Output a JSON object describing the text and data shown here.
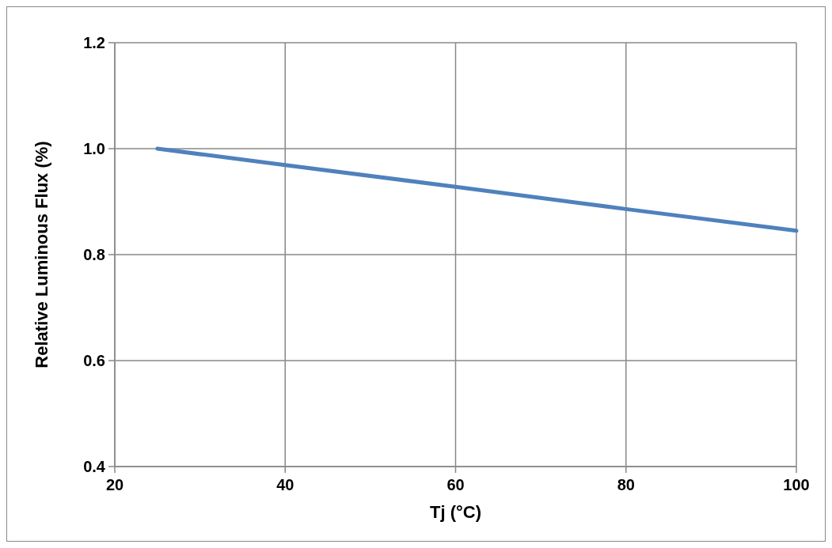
{
  "chart_data": {
    "type": "line",
    "xlabel": "Tj (°C)",
    "ylabel": "Relative Luminous Flux (%)",
    "x": [
      25,
      40,
      60,
      80,
      100
    ],
    "series": [
      {
        "color": "#4f81bd",
        "values": [
          1.0,
          0.969,
          0.928,
          0.886,
          0.845
        ]
      }
    ],
    "xlim": [
      20,
      100
    ],
    "xticks": [
      20,
      40,
      60,
      80,
      100
    ],
    "ylim": [
      0.4,
      1.2
    ],
    "yticks": [
      {
        "value": 0.4,
        "label": "0.4"
      },
      {
        "value": 0.6,
        "label": "0.6"
      },
      {
        "value": 0.8,
        "label": "0.8"
      },
      {
        "value": 1.0,
        "label": "1.0"
      },
      {
        "value": 1.2,
        "label": "1.2"
      }
    ],
    "grid": true,
    "marker": "none",
    "line_style": "solid"
  }
}
